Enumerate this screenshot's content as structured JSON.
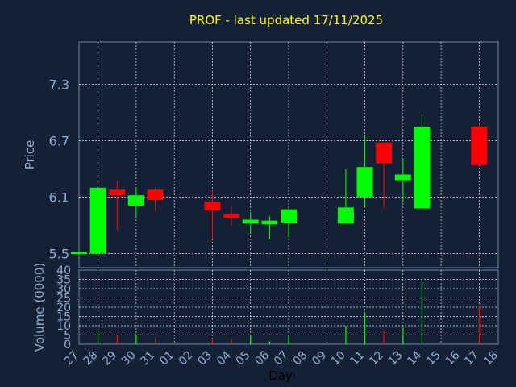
{
  "title": "PROF - last updated 17/11/2025",
  "chart_data": [
    {
      "type": "candlestick",
      "ylabel": "Price",
      "ylim": [
        5.35,
        7.75
      ],
      "yticks": [
        "5.5",
        "6.1",
        "6.7",
        "7.3"
      ],
      "grid": true,
      "up_color": "#00ff00",
      "down_color": "#ff0000",
      "candles": [
        {
          "day": "27",
          "open": 5.5,
          "high": 5.52,
          "low": 5.48,
          "close": 5.52,
          "dir": "up"
        },
        {
          "day": "28",
          "open": 5.5,
          "high": 6.2,
          "low": 5.5,
          "close": 6.2,
          "dir": "up"
        },
        {
          "day": "29",
          "open": 6.18,
          "high": 6.28,
          "low": 5.75,
          "close": 6.12,
          "dir": "down"
        },
        {
          "day": "30",
          "open": 6.01,
          "high": 6.2,
          "low": 5.88,
          "close": 6.12,
          "dir": "up"
        },
        {
          "day": "31",
          "open": 6.18,
          "high": 6.2,
          "low": 5.95,
          "close": 6.07,
          "dir": "down"
        },
        {
          "day": "03",
          "open": 6.05,
          "high": 6.17,
          "low": 5.65,
          "close": 5.96,
          "dir": "down"
        },
        {
          "day": "04",
          "open": 5.92,
          "high": 6.0,
          "low": 5.8,
          "close": 5.88,
          "dir": "down"
        },
        {
          "day": "05",
          "open": 5.82,
          "high": 5.94,
          "low": 5.72,
          "close": 5.86,
          "dir": "up"
        },
        {
          "day": "06",
          "open": 5.81,
          "high": 5.9,
          "low": 5.65,
          "close": 5.85,
          "dir": "up"
        },
        {
          "day": "07",
          "open": 5.83,
          "high": 5.98,
          "low": 5.67,
          "close": 5.97,
          "dir": "up"
        },
        {
          "day": "10",
          "open": 5.82,
          "high": 6.4,
          "low": 5.82,
          "close": 5.99,
          "dir": "up"
        },
        {
          "day": "11",
          "open": 6.1,
          "high": 6.74,
          "low": 6.0,
          "close": 6.42,
          "dir": "up"
        },
        {
          "day": "12",
          "open": 6.68,
          "high": 6.68,
          "low": 5.98,
          "close": 6.46,
          "dir": "down"
        },
        {
          "day": "13",
          "open": 6.28,
          "high": 6.5,
          "low": 6.05,
          "close": 6.34,
          "dir": "up"
        },
        {
          "day": "14",
          "open": 5.98,
          "high": 6.98,
          "low": 5.98,
          "close": 6.85,
          "dir": "up"
        },
        {
          "day": "17",
          "open": 6.85,
          "high": 6.87,
          "low": 6.44,
          "close": 6.44,
          "dir": "down"
        }
      ]
    },
    {
      "type": "bar",
      "ylabel": "Volume (0000)",
      "xlabel": "Day",
      "ylim": [
        0,
        40
      ],
      "yticks": [
        "0",
        "5",
        "10",
        "15",
        "20",
        "25",
        "30",
        "35",
        "40"
      ],
      "bars": [
        {
          "day": "28",
          "value": 7.5,
          "color": "#00ff00"
        },
        {
          "day": "29",
          "value": 5.0,
          "color": "#ff0000"
        },
        {
          "day": "30",
          "value": 5.5,
          "color": "#00ff00"
        },
        {
          "day": "31",
          "value": 3.5,
          "color": "#ff0000"
        },
        {
          "day": "03",
          "value": 3.0,
          "color": "#ff0000"
        },
        {
          "day": "04",
          "value": 3.0,
          "color": "#ff0000"
        },
        {
          "day": "05",
          "value": 5.0,
          "color": "#00ff00"
        },
        {
          "day": "06",
          "value": 1.5,
          "color": "#00ff00"
        },
        {
          "day": "07",
          "value": 4.5,
          "color": "#00ff00"
        },
        {
          "day": "10",
          "value": 10.0,
          "color": "#00ff00"
        },
        {
          "day": "11",
          "value": 17.0,
          "color": "#00ff00"
        },
        {
          "day": "12",
          "value": 7.5,
          "color": "#ff0000"
        },
        {
          "day": "13",
          "value": 9.0,
          "color": "#00ff00"
        },
        {
          "day": "14",
          "value": 35.0,
          "color": "#00ff00"
        },
        {
          "day": "17",
          "value": 21.0,
          "color": "#ff0000"
        }
      ]
    }
  ],
  "x_days": [
    "27",
    "28",
    "29",
    "30",
    "31",
    "01",
    "02",
    "03",
    "04",
    "05",
    "06",
    "07",
    "08",
    "09",
    "10",
    "11",
    "12",
    "13",
    "14",
    "15",
    "16",
    "17",
    "18"
  ]
}
